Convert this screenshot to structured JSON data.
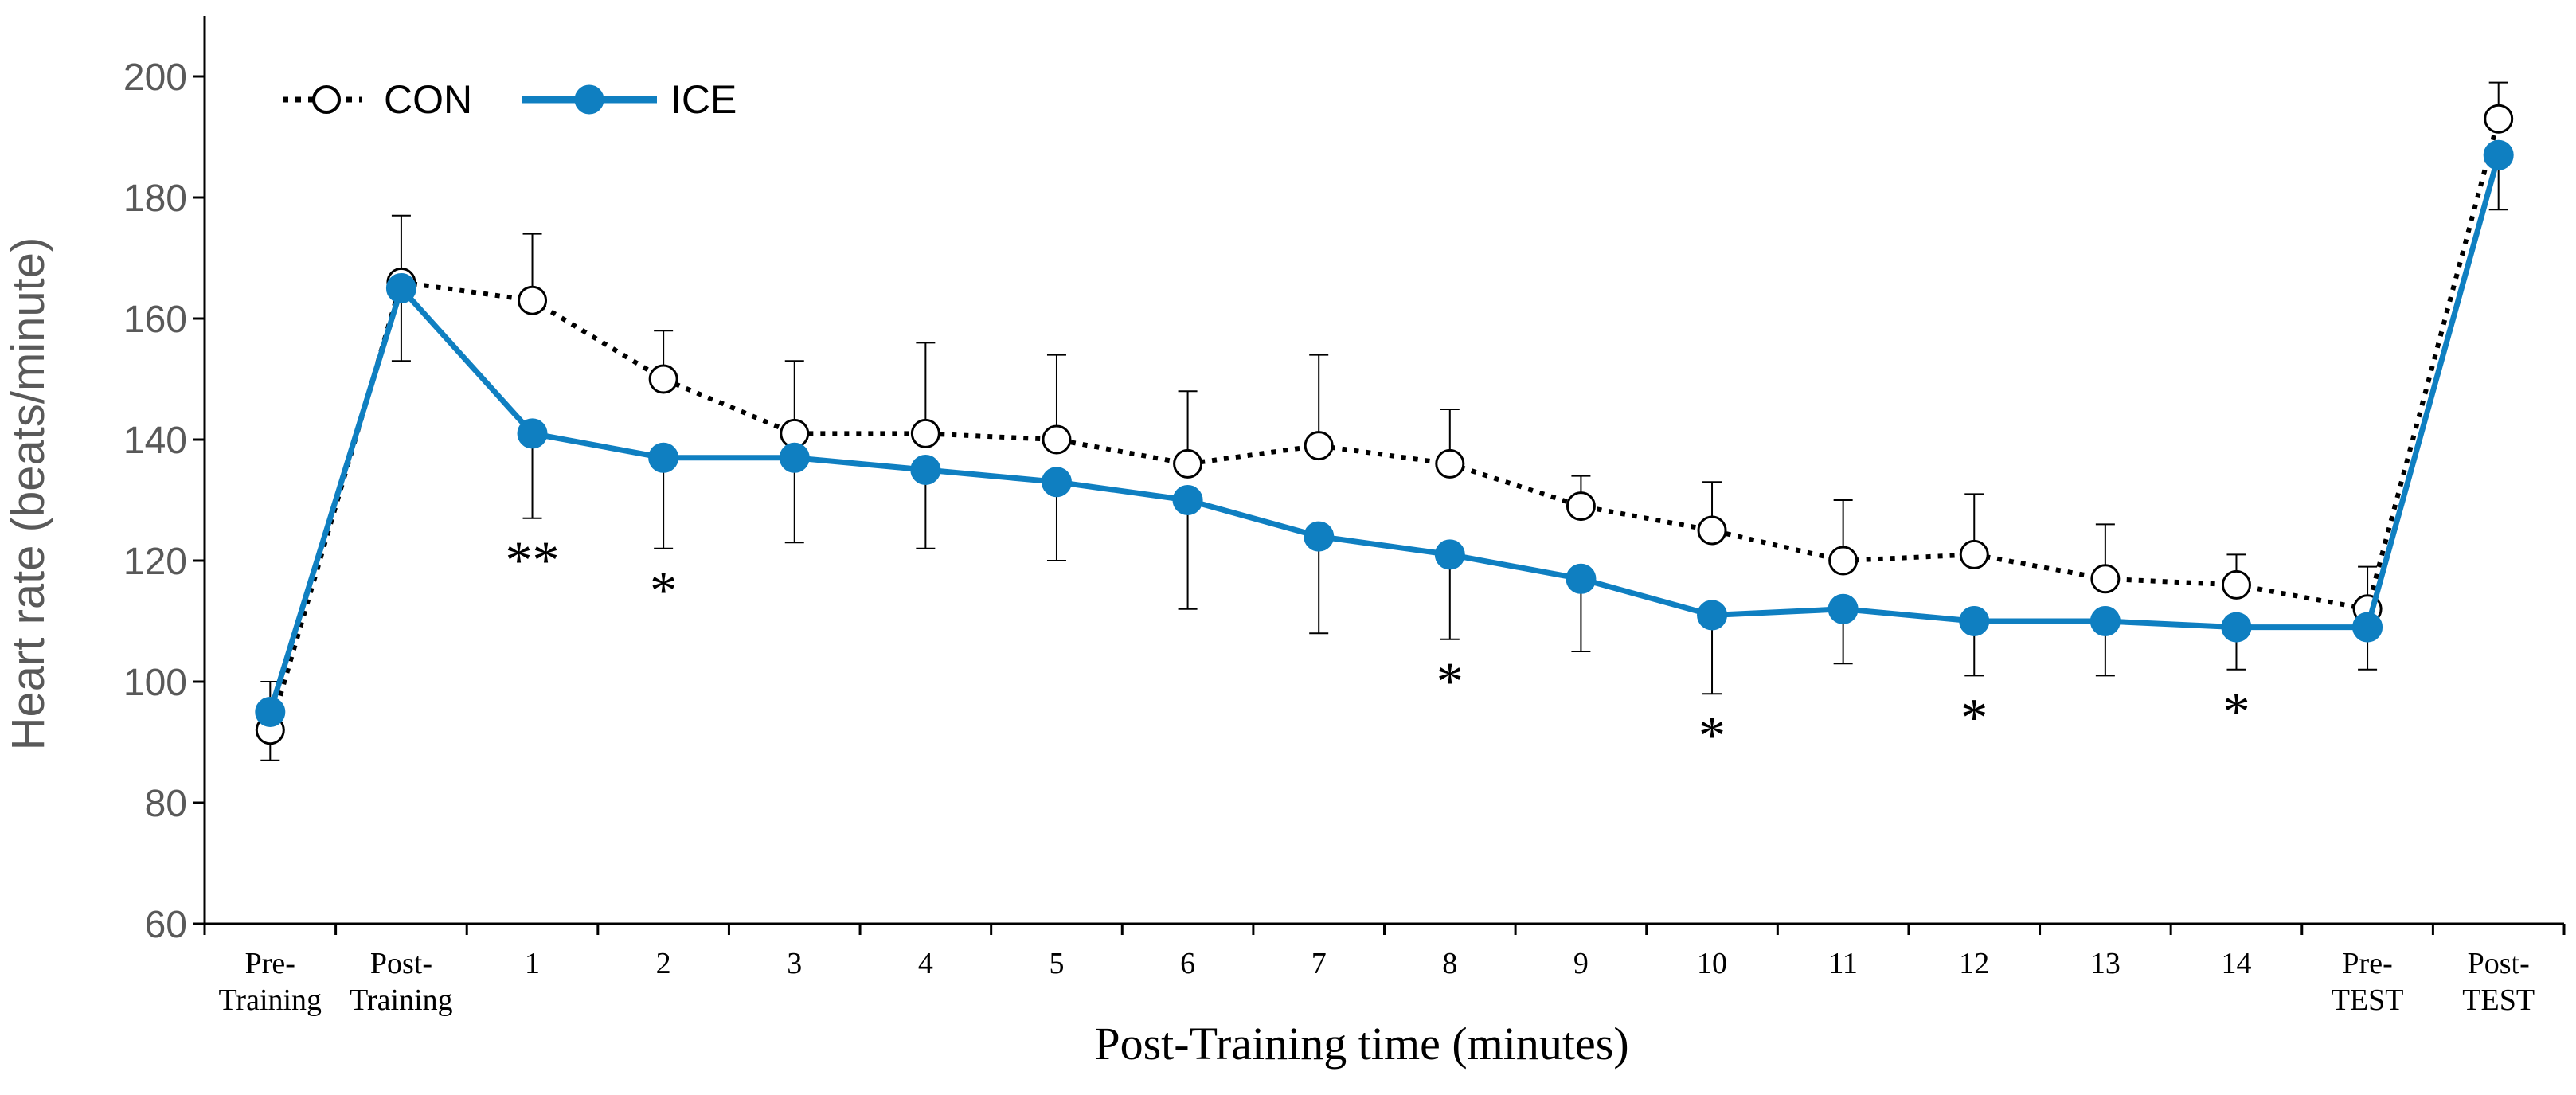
{
  "chart_data": {
    "type": "line",
    "title": "",
    "xlabel": "Post-Training time (minutes)",
    "ylabel": "Heart rate (beats/minute)",
    "ylim": [
      60,
      210
    ],
    "yticks": [
      60,
      80,
      100,
      120,
      140,
      160,
      180,
      200
    ],
    "categories": [
      [
        "Pre-",
        "Training"
      ],
      [
        "Post-",
        "Training"
      ],
      [
        "1"
      ],
      [
        "2"
      ],
      [
        "3"
      ],
      [
        "4"
      ],
      [
        "5"
      ],
      [
        "6"
      ],
      [
        "7"
      ],
      [
        "8"
      ],
      [
        "9"
      ],
      [
        "10"
      ],
      [
        "11"
      ],
      [
        "12"
      ],
      [
        "13"
      ],
      [
        "14"
      ],
      [
        "Pre-",
        "TEST"
      ],
      [
        "Post-",
        "TEST"
      ]
    ],
    "grid": false,
    "legend_position": "top-left",
    "series": [
      {
        "name": "CON",
        "style": "dotted",
        "marker": "open-circle",
        "color": "#000000",
        "values": [
          92,
          166,
          163,
          150,
          141,
          141,
          140,
          136,
          139,
          136,
          129,
          125,
          120,
          121,
          117,
          116,
          112,
          193
        ],
        "error": [
          8,
          11,
          11,
          8,
          12,
          15,
          14,
          12,
          15,
          9,
          5,
          8,
          10,
          10,
          9,
          5,
          7,
          6
        ]
      },
      {
        "name": "ICE",
        "style": "solid",
        "marker": "filled-circle",
        "color": "#0f7fc1",
        "values": [
          95,
          165,
          141,
          137,
          137,
          135,
          133,
          130,
          124,
          121,
          117,
          111,
          112,
          110,
          110,
          109,
          109,
          187
        ],
        "error": [
          8,
          12,
          14,
          15,
          14,
          13,
          13,
          18,
          16,
          14,
          12,
          13,
          9,
          9,
          9,
          7,
          7,
          9
        ]
      }
    ],
    "annotations": [
      {
        "category_index": 2,
        "text": "**"
      },
      {
        "category_index": 3,
        "text": "*"
      },
      {
        "category_index": 9,
        "text": "*"
      },
      {
        "category_index": 11,
        "text": "*"
      },
      {
        "category_index": 13,
        "text": "*"
      },
      {
        "category_index": 15,
        "text": "*"
      }
    ]
  }
}
